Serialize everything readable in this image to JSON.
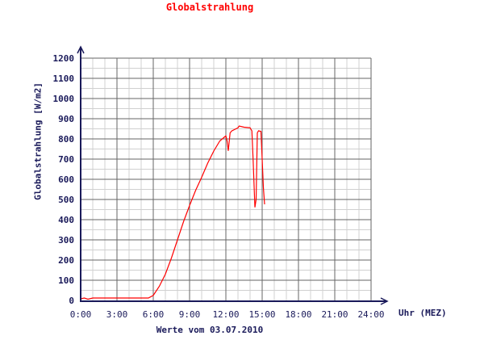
{
  "chart_data": {
    "type": "line",
    "title": "Globalstrahlung",
    "xlabel": "Werte vom 03.07.2010",
    "x_unit": "Uhr (MEZ)",
    "ylabel": "Globalstrahlung [W/m2]",
    "xlim": [
      0,
      24
    ],
    "ylim": [
      0,
      1200
    ],
    "x_ticks": [
      "0:00",
      "3:00",
      "6:00",
      "9:00",
      "12:00",
      "15:00",
      "18:00",
      "21:00",
      "24:00"
    ],
    "y_ticks": [
      "0",
      "100",
      "200",
      "300",
      "400",
      "500",
      "600",
      "700",
      "800",
      "900",
      "1000",
      "1100",
      "1200"
    ],
    "grid": true,
    "line_color": "#ff0000",
    "axis_color": "#1a1a5a",
    "series": [
      {
        "x": [
          0,
          0.3,
          0.6,
          1,
          2,
          3,
          4,
          5,
          5.6,
          6,
          6.5,
          7,
          7.5,
          8,
          8.5,
          9,
          9.5,
          10,
          10.5,
          11,
          11.5,
          12,
          12.1,
          12.2,
          12.35,
          12.5,
          13,
          13.1,
          13.5,
          14,
          14.15,
          14.25,
          14.4,
          14.5,
          14.6,
          14.7,
          14.9,
          15.0,
          15.1,
          15.2
        ],
        "y": [
          8,
          12,
          6,
          12,
          12,
          12,
          12,
          12,
          12,
          25,
          70,
          130,
          210,
          300,
          390,
          470,
          545,
          610,
          680,
          740,
          790,
          815,
          790,
          741,
          830,
          840,
          855,
          864,
          858,
          855,
          840,
          700,
          461,
          500,
          830,
          840,
          837,
          700,
          560,
          476
        ]
      }
    ]
  }
}
